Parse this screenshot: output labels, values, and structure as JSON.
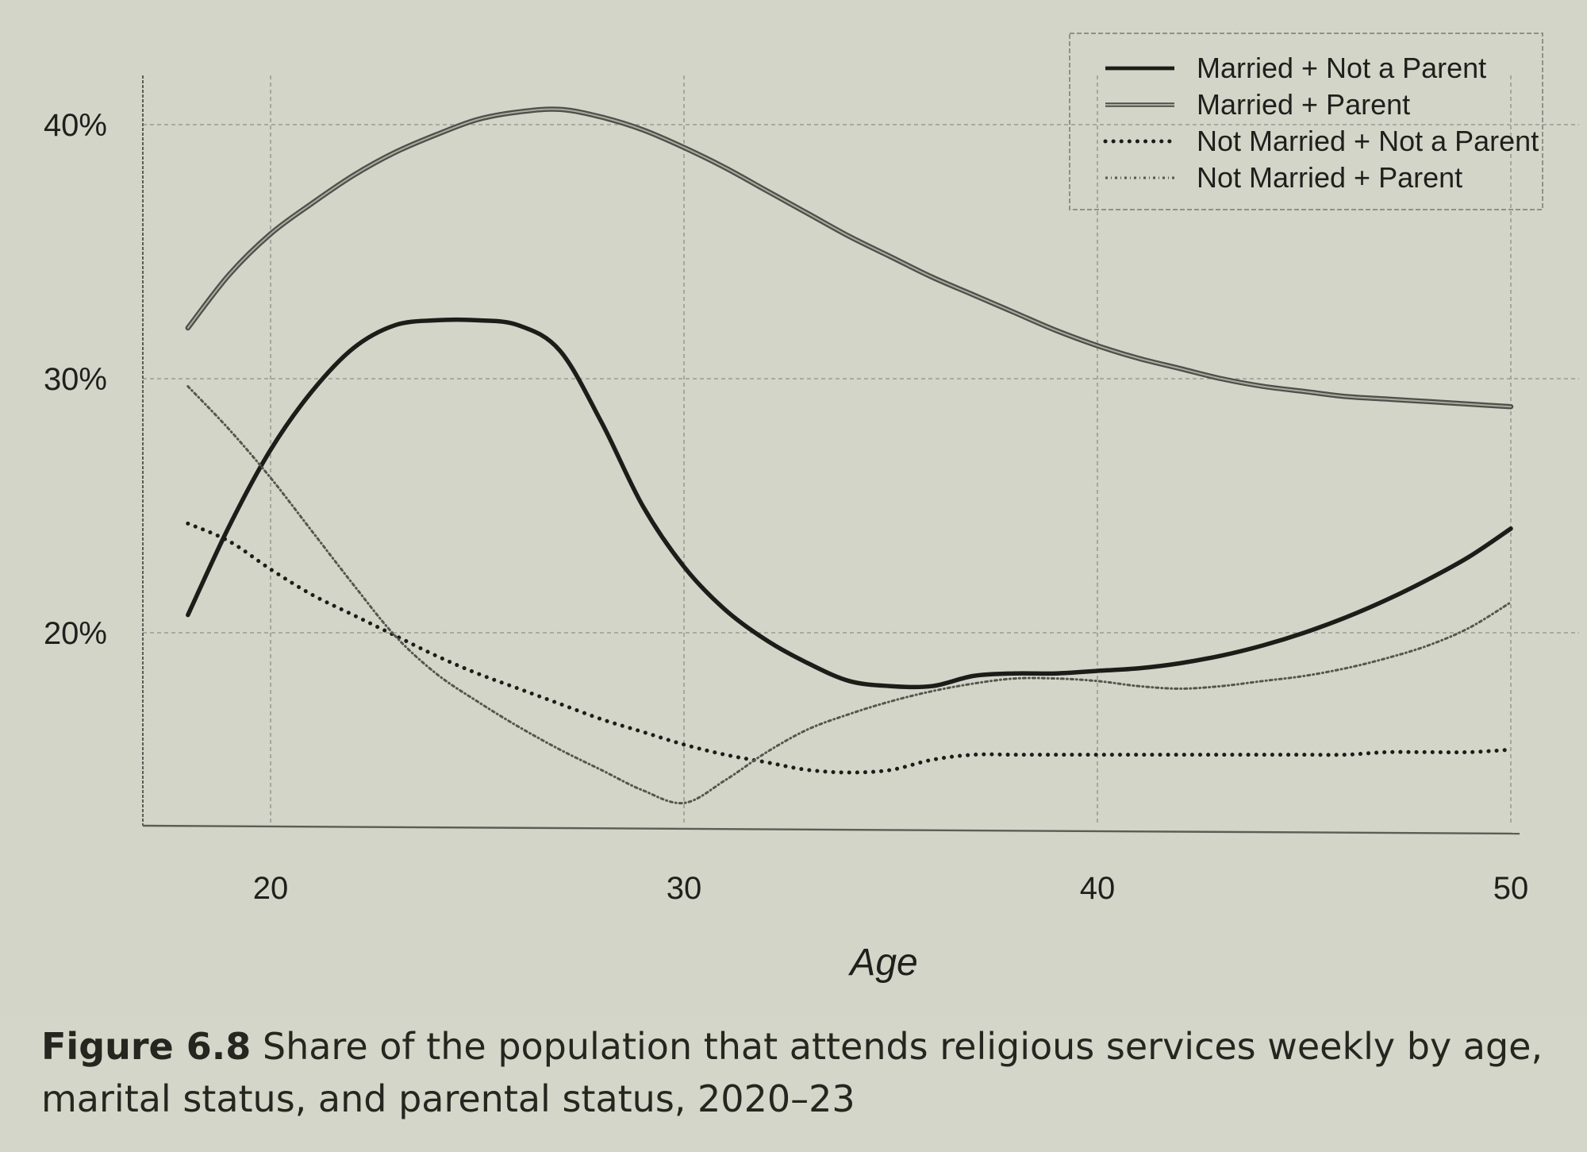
{
  "chart_data": {
    "type": "line",
    "xlabel": "Age",
    "ylabel": "",
    "xlim": [
      16.9,
      50
    ],
    "ylim": [
      12.5,
      42
    ],
    "x_ticks": [
      "20",
      "30",
      "40",
      "50"
    ],
    "y_ticks": [
      "20%",
      "30%",
      "40%"
    ],
    "grid": true,
    "legend_position": "top-right",
    "series": [
      {
        "name": "Married + Not a Parent",
        "style": "solid",
        "x": [
          18,
          19,
          20,
          21,
          22,
          23,
          24,
          25,
          26,
          27,
          28,
          29,
          30,
          31,
          32,
          33,
          34,
          35,
          36,
          37,
          38,
          39,
          40,
          41,
          42,
          43,
          44,
          45,
          46,
          47,
          48,
          49,
          50
        ],
        "y": [
          20.7,
          24.2,
          27.2,
          29.5,
          31.2,
          32.1,
          32.3,
          32.3,
          32.1,
          31.1,
          28.3,
          25.0,
          22.6,
          20.9,
          19.7,
          18.8,
          18.1,
          17.9,
          17.9,
          18.3,
          18.4,
          18.4,
          18.5,
          18.6,
          18.8,
          19.1,
          19.5,
          20.0,
          20.6,
          21.3,
          22.1,
          23.0,
          24.1
        ]
      },
      {
        "name": "Married + Parent",
        "style": "double",
        "x": [
          18,
          19,
          20,
          21,
          22,
          23,
          24,
          25,
          26,
          27,
          28,
          29,
          30,
          31,
          32,
          33,
          34,
          35,
          36,
          37,
          38,
          39,
          40,
          41,
          42,
          43,
          44,
          45,
          46,
          47,
          48,
          49,
          50
        ],
        "y": [
          32.0,
          34.1,
          35.7,
          36.9,
          38.0,
          38.9,
          39.6,
          40.2,
          40.5,
          40.6,
          40.3,
          39.8,
          39.1,
          38.3,
          37.4,
          36.5,
          35.6,
          34.8,
          34.0,
          33.3,
          32.6,
          31.9,
          31.3,
          30.8,
          30.4,
          30.0,
          29.7,
          29.5,
          29.3,
          29.2,
          29.1,
          29.0,
          28.9
        ]
      },
      {
        "name": "Not Married + Not a Parent",
        "style": "dotted",
        "x": [
          18,
          19,
          20,
          21,
          22,
          23,
          24,
          25,
          26,
          27,
          28,
          29,
          30,
          31,
          32,
          33,
          34,
          35,
          36,
          37,
          38,
          39,
          40,
          41,
          42,
          43,
          44,
          45,
          46,
          47,
          48,
          49,
          50
        ],
        "y": [
          24.3,
          23.6,
          22.5,
          21.5,
          20.7,
          19.9,
          19.1,
          18.4,
          17.8,
          17.2,
          16.6,
          16.1,
          15.6,
          15.2,
          14.9,
          14.6,
          14.5,
          14.6,
          15.0,
          15.2,
          15.2,
          15.2,
          15.2,
          15.2,
          15.2,
          15.2,
          15.2,
          15.2,
          15.2,
          15.3,
          15.3,
          15.3,
          15.4
        ]
      },
      {
        "name": "Not Married + Parent",
        "style": "dashdot",
        "x": [
          18,
          19,
          20,
          21,
          22,
          23,
          24,
          25,
          26,
          27,
          28,
          29,
          30,
          31,
          32,
          33,
          34,
          35,
          36,
          37,
          38,
          39,
          40,
          41,
          42,
          43,
          44,
          45,
          46,
          47,
          48,
          49,
          50
        ],
        "y": [
          29.7,
          28.0,
          26.1,
          24.0,
          21.9,
          19.9,
          18.4,
          17.3,
          16.3,
          15.4,
          14.6,
          13.8,
          13.3,
          14.2,
          15.3,
          16.2,
          16.8,
          17.3,
          17.7,
          18.0,
          18.2,
          18.2,
          18.1,
          17.9,
          17.8,
          17.9,
          18.1,
          18.3,
          18.6,
          19.0,
          19.5,
          20.2,
          21.2
        ]
      }
    ]
  },
  "caption": {
    "figure_label": "Figure 6.8",
    "text": " Share of the population that attends religious services weekly by age, marital status, and parental status, 2020–23"
  }
}
